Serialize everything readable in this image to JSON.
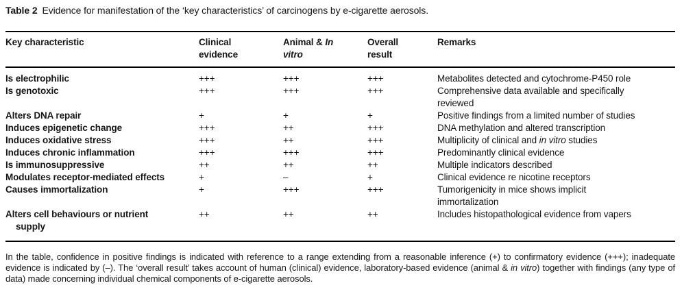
{
  "title": {
    "label": "Table 2",
    "text": "Evidence for manifestation of the ‘key characteristics’ of carcinogens by e-cigarette aerosols."
  },
  "italic_phrases": [
    "in vitro"
  ],
  "table": {
    "headers": {
      "characteristic": "Key characteristic",
      "clinical": "Clinical\nevidence",
      "animal_pre": "Animal & ",
      "animal_italic_line1": "In",
      "animal_italic_line2": "vitro",
      "overall": "Overall\nresult",
      "remarks": "Remarks"
    },
    "rows": [
      {
        "characteristic": "Is electrophilic",
        "clinical": "+++",
        "animal": "+++",
        "overall": "+++",
        "remark": "Metabolites detected and cytochrome-P450 role"
      },
      {
        "characteristic": "Is genotoxic",
        "clinical": "+++",
        "animal": "+++",
        "overall": "+++",
        "remark": "Comprehensive data available and specifically\nreviewed"
      },
      {
        "characteristic": "Alters DNA repair",
        "clinical": "+",
        "animal": "+",
        "overall": "+",
        "remark": "Positive findings from a limited number of studies"
      },
      {
        "characteristic": "Induces epigenetic change",
        "clinical": "+++",
        "animal": "++",
        "overall": "+++",
        "remark": "DNA methylation and altered transcription"
      },
      {
        "characteristic": "Induces oxidative stress",
        "clinical": "+++",
        "animal": "++",
        "overall": "+++",
        "remark": "Multiplicity of clinical and in vitro studies"
      },
      {
        "characteristic": "Induces chronic inflammation",
        "clinical": "+++",
        "animal": "+++",
        "overall": "+++",
        "remark": "Predominantly clinical evidence"
      },
      {
        "characteristic": "Is immunosuppressive",
        "clinical": "++",
        "animal": "++",
        "overall": "++",
        "remark": "Multiple indicators described"
      },
      {
        "characteristic": "Modulates receptor-mediated effects",
        "clinical": "+",
        "animal": "–",
        "overall": "+",
        "remark": "Clinical evidence re nicotine receptors"
      },
      {
        "characteristic": "Causes immortalization",
        "clinical": "+",
        "animal": "+++",
        "overall": "+++",
        "remark": "Tumorigenicity in mice shows implicit\nimmortalization"
      },
      {
        "characteristic": "Alters cell behaviours or nutrient\nsupply",
        "clinical": "++",
        "animal": "++",
        "overall": "++",
        "remark": "Includes histopathological evidence from vapers"
      }
    ]
  },
  "footnote": {
    "text": "In the table, confidence in positive findings is indicated with reference to a range extending from a reasonable inference (+) to confirmatory evidence (+++); inadequate evidence is indicated by (–). The ‘overall result’ takes account of human (clinical) evidence, laboratory-based evidence (animal & in vitro) together with findings (any type of data) made concerning individual chemical components of e-cigarette aerosols."
  }
}
